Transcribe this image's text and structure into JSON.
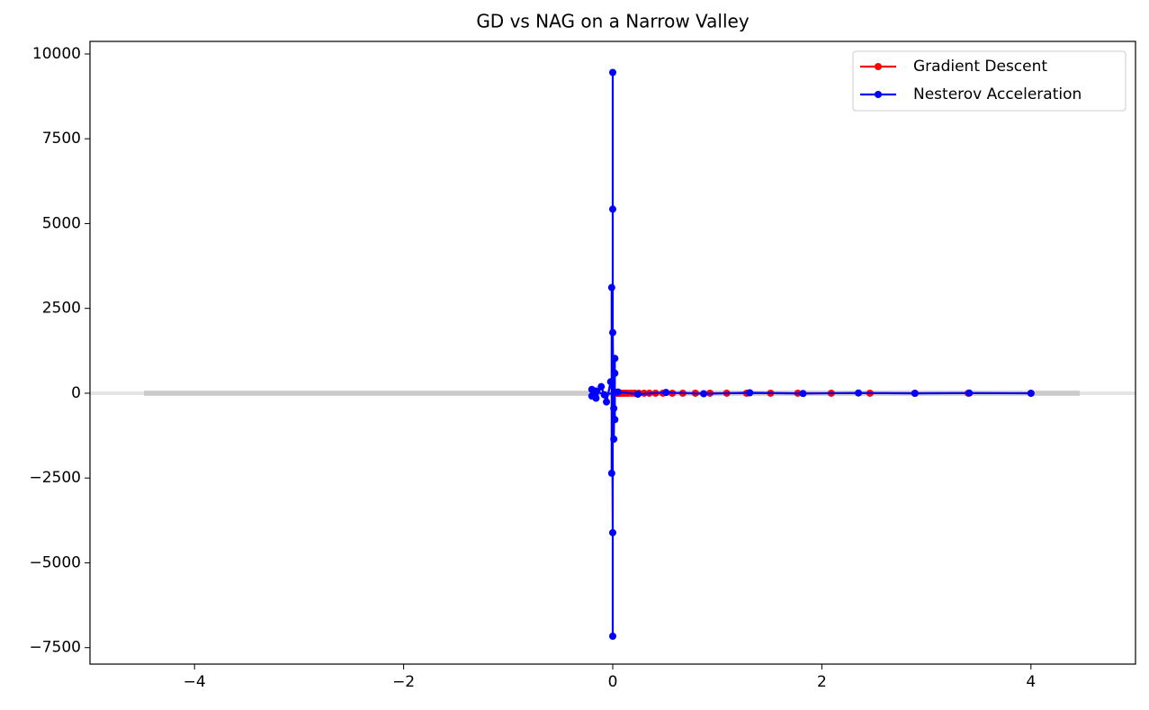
{
  "chart_data": {
    "type": "line",
    "title": "GD vs NAG on a Narrow Valley",
    "xlim": [
      -5,
      5
    ],
    "ylim": [
      -7985,
      10370
    ],
    "xticks": [
      {
        "value": -4,
        "label": "−4"
      },
      {
        "value": -2,
        "label": "−2"
      },
      0,
      2,
      4
    ],
    "yticks": [
      {
        "value": -7500,
        "label": "−7500"
      },
      {
        "value": -5000,
        "label": "−5000"
      },
      {
        "value": -2500,
        "label": "−2500"
      },
      0,
      2500,
      5000,
      7500,
      10000
    ],
    "legend": "upper right",
    "marker": "circle",
    "series": [
      {
        "name": "Gradient Descent",
        "color": "#ff0000",
        "x": [
          4,
          3.4,
          2.89,
          2.46,
          2.09,
          1.77,
          1.51,
          1.28,
          1.09,
          0.93,
          0.79,
          0.67,
          0.57,
          0.48,
          0.41,
          0.35,
          0.3,
          0.25,
          0.21,
          0.18,
          0.15,
          0.13,
          0.11,
          0.09,
          0.08,
          0.07,
          0.06,
          0.05,
          0.04,
          0.03
        ],
        "values": [
          0,
          0,
          0,
          0,
          0,
          0,
          0,
          0,
          0,
          0,
          0,
          0,
          0,
          0,
          0,
          0,
          0,
          0,
          0,
          0,
          0,
          0,
          0,
          0,
          0,
          0,
          0,
          0,
          0,
          0
        ]
      },
      {
        "name": "Nesterov Acceleration",
        "color": "#0000ff",
        "x": [
          4,
          3.41,
          2.89,
          2.35,
          1.82,
          1.31,
          0.87,
          0.51,
          0.24,
          0.05,
          -0.08,
          -0.16,
          -0.2,
          -0.2,
          -0.16,
          -0.11,
          -0.06,
          -0.02,
          0.01,
          0.02,
          0.02,
          0.02,
          0.01,
          0,
          -0.01,
          -0.01,
          0,
          0,
          0,
          0
        ],
        "values": [
          -3,
          4,
          -5.2,
          6.9,
          -9.1,
          12,
          -15.9,
          21,
          -27.7,
          36.5,
          -48,
          64,
          -84,
          111,
          -147,
          194,
          -256,
          338,
          -446,
          589,
          -777,
          1026,
          -1354,
          1787,
          -2359,
          3114,
          -4111,
          5426,
          -7163,
          9455
        ]
      }
    ]
  }
}
